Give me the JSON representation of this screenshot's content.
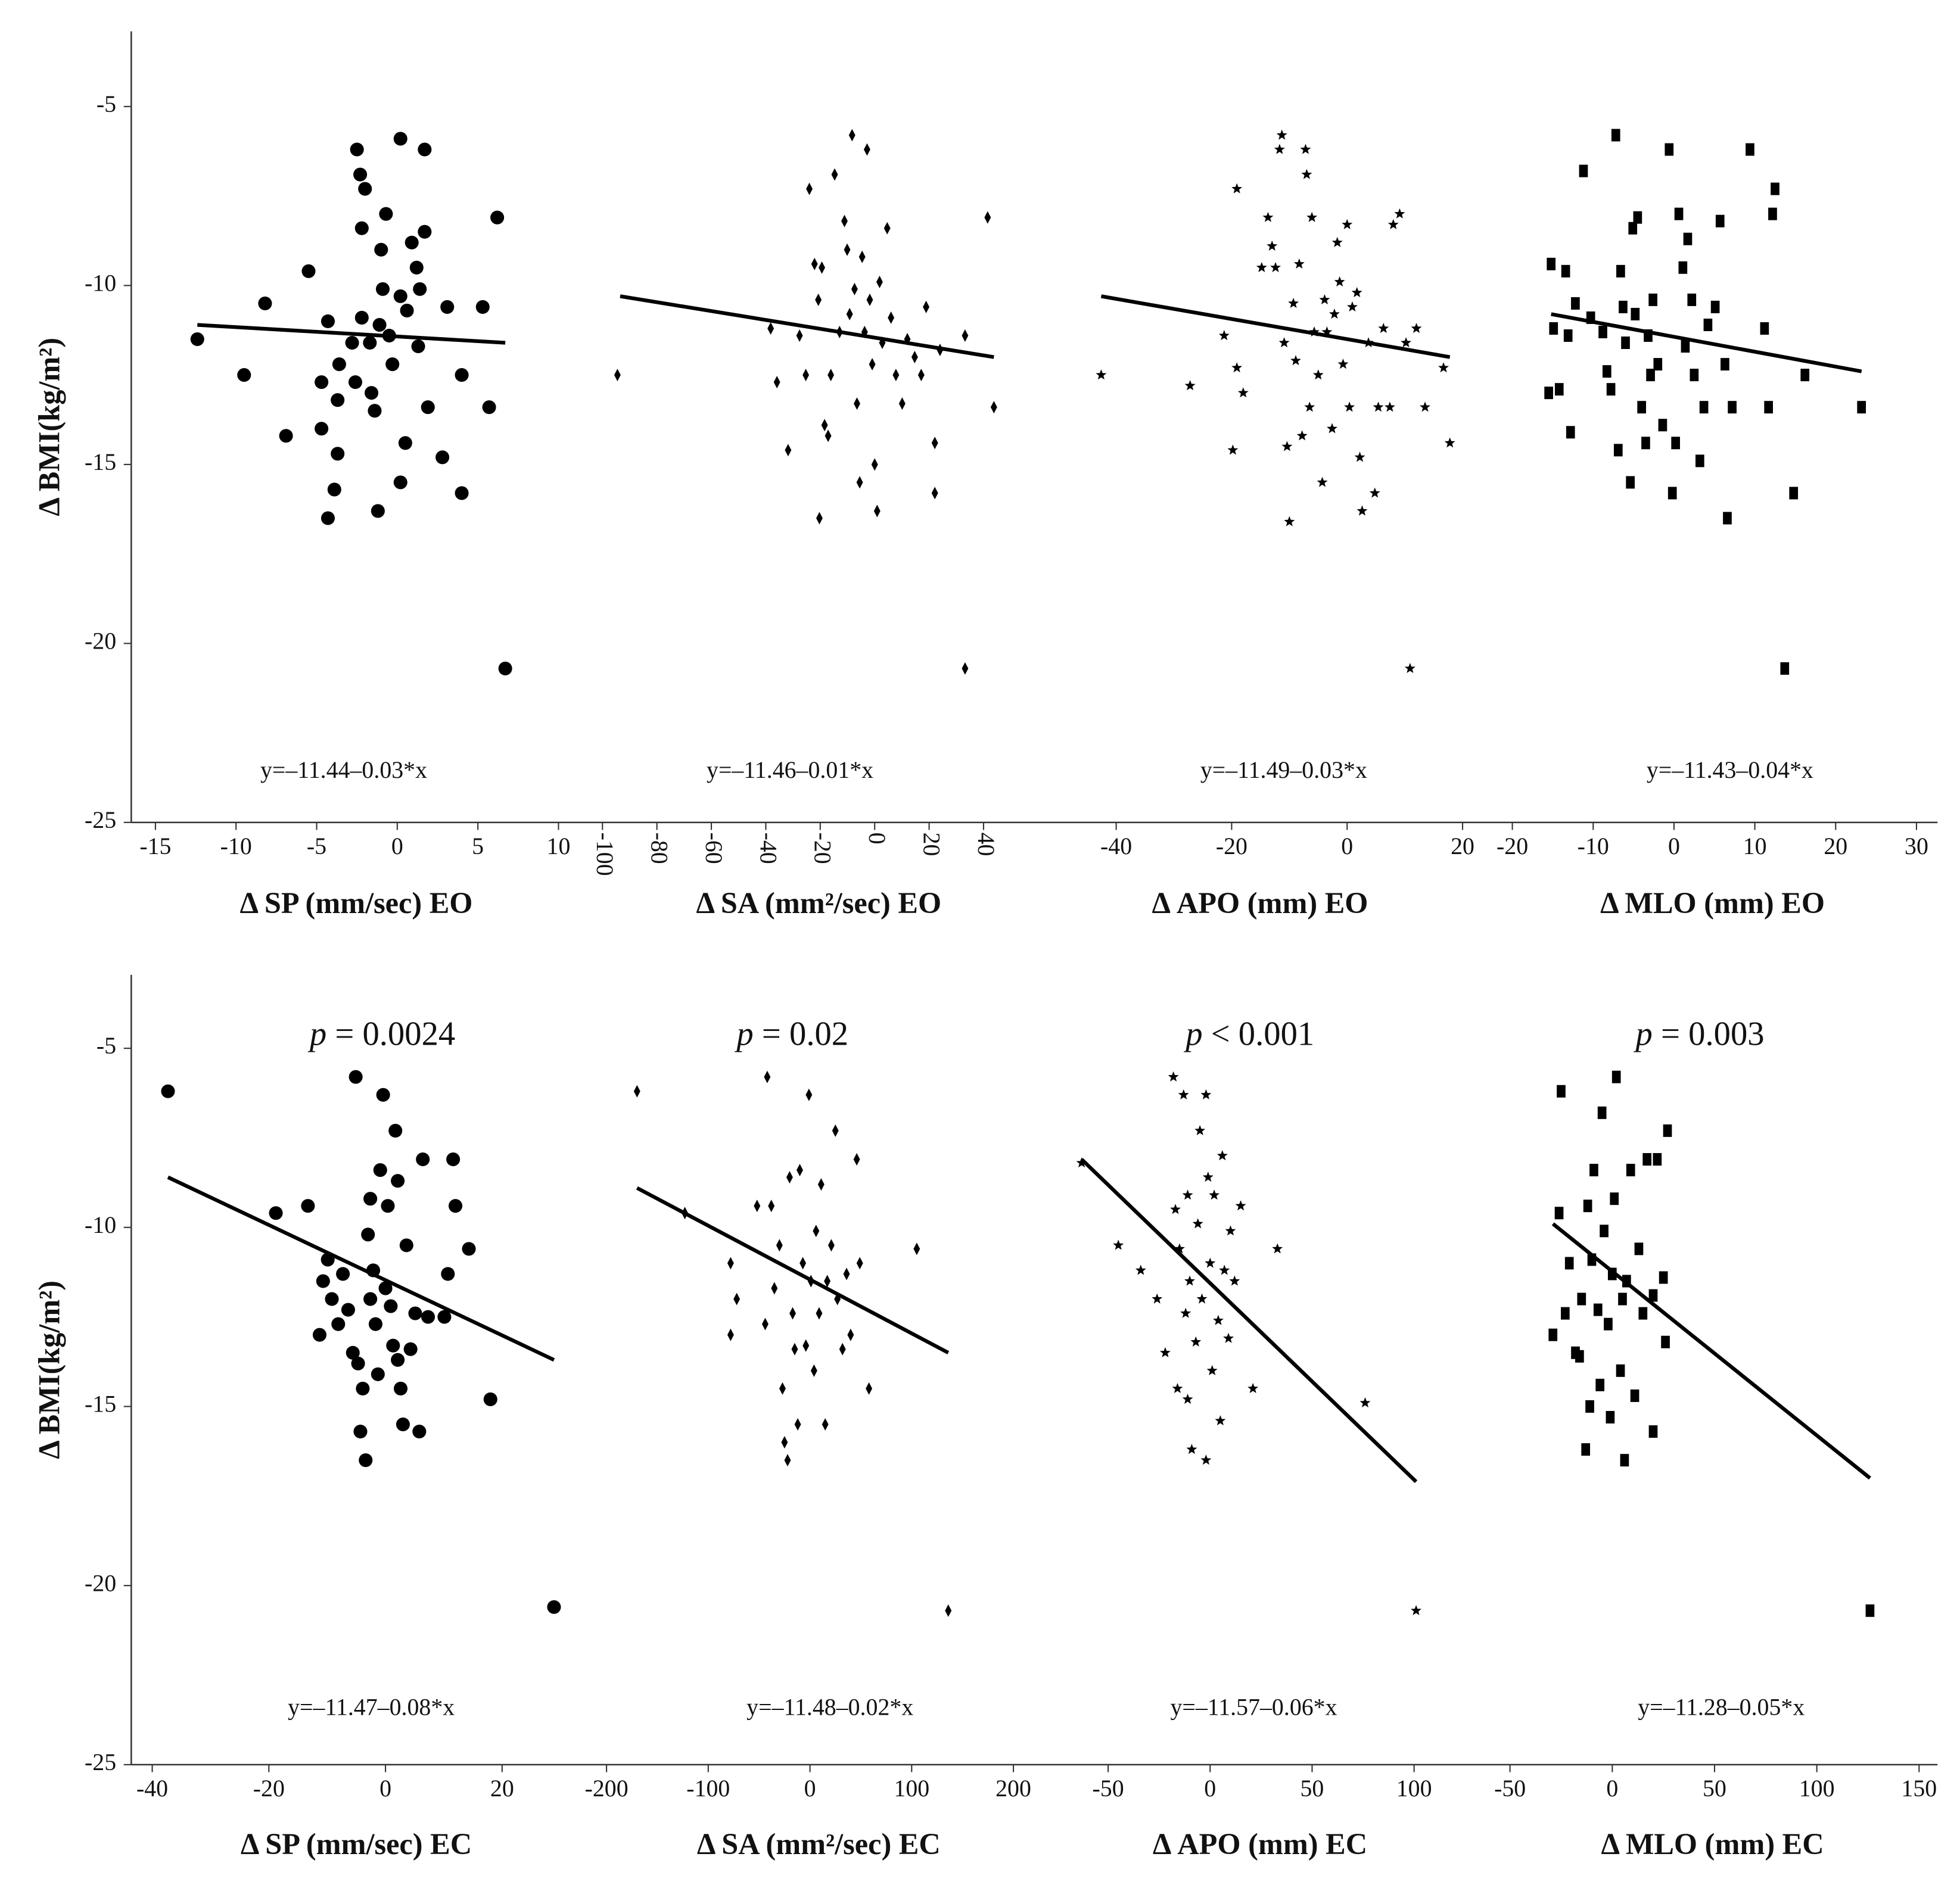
{
  "chart_data": [
    {
      "type": "scatter",
      "marker": "circle",
      "ylabel": "Δ BMI(kg/m²)",
      "ylim": [
        -25,
        -2.9
      ],
      "yticks": [
        -25,
        -20,
        -15,
        -10,
        -5
      ],
      "xlabel": "Δ SP (mm/sec) EO",
      "equation": "y=–11.44–0.03*x",
      "xlim": [
        -16.5,
        11.8
      ],
      "xticks": [
        -15,
        -10,
        -5,
        0,
        5,
        10
      ],
      "x": [
        -12.4,
        -9.5,
        -8.2,
        -6.9,
        -5.5,
        -4.7,
        -4.3,
        -3.9,
        -3.7,
        -4.7,
        -4.3,
        -3.6,
        -2.6,
        -2.5,
        -2.3,
        -2.0,
        -2.2,
        -1.7,
        -1.6,
        -1.2,
        -1.1,
        -1.0,
        -0.9,
        -0.7,
        -0.5,
        -0.3,
        0.2,
        0.2,
        0.2,
        0.5,
        0.6,
        0.9,
        1.2,
        1.4,
        1.7,
        1.7,
        1.9,
        2.8,
        3.1,
        4.0,
        4.0,
        5.7,
        6.2,
        5.3,
        6.7,
        -2.8,
        -1.4,
        -3.7,
        1.3,
        -2.2
      ],
      "values": [
        -11.5,
        -12.5,
        -10.5,
        -14.2,
        -9.6,
        -14.0,
        -16.5,
        -15.7,
        -14.7,
        -12.7,
        -11.0,
        -12.2,
        -12.7,
        -6.2,
        -6.9,
        -7.3,
        -8.4,
        -11.6,
        -13.0,
        -16.3,
        -11.1,
        -9.0,
        -10.1,
        -8.0,
        -11.4,
        -12.2,
        -5.9,
        -10.3,
        -15.5,
        -14.4,
        -10.7,
        -8.8,
        -9.5,
        -10.1,
        -6.2,
        -8.5,
        -13.4,
        -14.8,
        -10.6,
        -15.8,
        -12.5,
        -13.4,
        -8.1,
        -10.6,
        -20.7,
        -11.6,
        -13.5,
        -13.2,
        -11.7,
        -10.9
      ],
      "trend": {
        "x": [
          -12.4,
          6.7
        ],
        "y": [
          -11.1,
          -11.6
        ]
      }
    },
    {
      "type": "scatter",
      "marker": "diamond",
      "xlabel": "Δ SA (mm²/sec) EO",
      "equation": "y=–11.46–0.01*x",
      "xlim": [
        -105.5,
        69
      ],
      "xticks": [
        -100,
        -80,
        -60,
        -40,
        -20,
        0,
        20,
        40
      ],
      "xtick_rotation": 90,
      "x": [
        -94.5,
        -38.2,
        -35.9,
        -31.8,
        -27.6,
        -25.3,
        -24.0,
        -22.1,
        -20.7,
        -20.3,
        -19.4,
        -18.4,
        -17.1,
        -16.1,
        -14.7,
        -12.9,
        -11.1,
        -10.1,
        -9.2,
        -8.3,
        -7.4,
        -6.5,
        -5.5,
        -4.6,
        -3.7,
        -2.8,
        -1.8,
        -0.9,
        0,
        0.9,
        1.8,
        2.8,
        4.6,
        6.0,
        7.8,
        10.1,
        12.0,
        14.7,
        17.1,
        18.9,
        22.1,
        22.1,
        24.0,
        33.2,
        33.2,
        41.5,
        43.8
      ],
      "values": [
        -12.5,
        -11.2,
        -12.7,
        -14.6,
        -11.4,
        -12.5,
        -7.3,
        -9.4,
        -10.4,
        -16.5,
        -9.5,
        -13.9,
        -14.2,
        -12.5,
        -6.9,
        -11.3,
        -8.2,
        -9.0,
        -10.8,
        -5.8,
        -10.1,
        -13.3,
        -15.5,
        -9.2,
        -11.3,
        -6.2,
        -10.4,
        -12.2,
        -15.0,
        -16.3,
        -9.9,
        -11.6,
        -8.4,
        -10.9,
        -12.5,
        -13.3,
        -11.5,
        -12.0,
        -12.5,
        -10.6,
        -14.4,
        -15.8,
        -11.8,
        -20.7,
        -11.4,
        -8.1,
        -13.4
      ],
      "trend": {
        "x": [
          -93.5,
          43.8
        ],
        "y": [
          -10.3,
          -12.0
        ]
      }
    },
    {
      "type": "scatter",
      "marker": "star",
      "xlabel": "Δ APO (mm) EO",
      "equation": "y=–11.49–0.03*x",
      "xlim": [
        -49.3,
        25.4
      ],
      "xticks": [
        -40,
        -20,
        0,
        20
      ],
      "x": [
        -42.6,
        -27.2,
        -21.3,
        -19.8,
        -19.1,
        -19.1,
        -18.0,
        -14.8,
        -13.7,
        -13.0,
        -12.4,
        -11.7,
        -11.3,
        -10.9,
        -10.4,
        -10.0,
        -9.3,
        -8.9,
        -8.3,
        -7.8,
        -7.2,
        -7.0,
        -6.5,
        -6.1,
        -5.7,
        -5.0,
        -4.3,
        -3.9,
        -3.5,
        -2.6,
        -2.2,
        -1.7,
        -1.3,
        -0.7,
        0,
        0.4,
        0.9,
        1.7,
        2.2,
        2.6,
        3.7,
        4.8,
        5.4,
        6.3,
        7.4,
        8.0,
        9.1,
        10.2,
        10.9,
        12.0,
        13.5,
        16.7,
        17.8
      ],
      "values": [
        -12.5,
        -12.8,
        -11.4,
        -14.6,
        -12.3,
        -7.3,
        -13.0,
        -9.5,
        -8.1,
        -8.9,
        -9.5,
        -6.2,
        -5.8,
        -11.6,
        -14.5,
        -16.6,
        -10.5,
        -12.1,
        -9.4,
        -14.2,
        -6.2,
        -6.9,
        -13.4,
        -8.1,
        -11.3,
        -12.5,
        -15.5,
        -10.4,
        -11.3,
        -14.0,
        -10.8,
        -8.8,
        -9.9,
        -12.2,
        -8.3,
        -13.4,
        -10.6,
        -10.2,
        -14.8,
        -16.3,
        -11.6,
        -15.8,
        -13.4,
        -11.2,
        -13.4,
        -8.3,
        -8.0,
        -11.6,
        -20.7,
        -11.2,
        -13.4,
        -12.3,
        -14.4
      ],
      "trend": {
        "x": [
          -42.6,
          17.8
        ],
        "y": [
          -10.3,
          -12.0
        ]
      }
    },
    {
      "type": "scatter",
      "marker": "square",
      "xlabel": "Δ MLO (mm) EO",
      "equation": "y=–11.43–0.04*x",
      "xlim": [
        -22.3,
        32.6
      ],
      "xticks": [
        -20,
        -10,
        0,
        10,
        20,
        30
      ],
      "x": [
        -15.5,
        -15.2,
        -14.9,
        -14.2,
        -13.4,
        -13.1,
        -12.8,
        -12.2,
        -11.2,
        -10.3,
        -8.8,
        -8.3,
        -7.8,
        -7.2,
        -6.9,
        -6.6,
        -6.3,
        -6.0,
        -5.4,
        -5.1,
        -4.8,
        -4.5,
        -4.0,
        -3.5,
        -3.2,
        -2.9,
        -2.6,
        -2.0,
        -1.4,
        -0.6,
        -0.2,
        0.2,
        0.6,
        1.1,
        1.4,
        1.7,
        2.2,
        2.5,
        3.2,
        3.7,
        4.2,
        5.1,
        5.7,
        6.3,
        6.6,
        7.2,
        9.4,
        11.2,
        11.7,
        12.2,
        12.5,
        13.7,
        14.8,
        16.2,
        23.2
      ],
      "values": [
        -13.0,
        -9.4,
        -11.2,
        -12.9,
        -9.6,
        -11.4,
        -14.1,
        -10.5,
        -6.8,
        -10.9,
        -11.3,
        -12.4,
        -12.9,
        -5.8,
        -14.6,
        -9.6,
        -10.6,
        -11.6,
        -15.5,
        -8.4,
        -10.8,
        -8.1,
        -13.4,
        -14.4,
        -11.4,
        -12.5,
        -10.4,
        -12.2,
        -13.9,
        -6.2,
        -15.8,
        -14.4,
        -8.0,
        -9.5,
        -11.7,
        -8.7,
        -10.4,
        -12.5,
        -14.9,
        -13.4,
        -11.1,
        -10.6,
        -8.2,
        -12.2,
        -16.5,
        -13.4,
        -6.2,
        -11.2,
        -13.4,
        -8.0,
        -7.3,
        -20.7,
        -15.8,
        -12.5,
        -13.4
      ],
      "trend": {
        "x": [
          -15.2,
          23.2
        ],
        "y": [
          -10.8,
          -12.4
        ]
      }
    },
    {
      "type": "scatter",
      "marker": "circle",
      "ylabel": "Δ BMI(kg/m²)",
      "ylim": [
        -25,
        -2.95
      ],
      "yticks": [
        -25,
        -20,
        -15,
        -10,
        -5
      ],
      "xlabel": "Δ SP (mm/sec) EC",
      "equation": "y=–11.47–0.08*x",
      "p_symbol": "p",
      "p_value": " = 0.0024",
      "xlim": [
        -43.6,
        32.5
      ],
      "xticks": [
        -40,
        -20,
        0,
        20
      ],
      "x": [
        -37.3,
        -18.8,
        -13.3,
        -11.3,
        -10.7,
        -9.9,
        -9.2,
        -8.1,
        -7.3,
        -6.4,
        -5.6,
        -5.1,
        -4.7,
        -4.3,
        -3.9,
        -3.4,
        -3.0,
        -2.6,
        -2.1,
        -1.7,
        -1.3,
        -0.9,
        -0.4,
        0,
        0.4,
        0.9,
        1.3,
        1.7,
        2.1,
        2.6,
        3.0,
        3.6,
        4.3,
        5.1,
        5.8,
        6.4,
        7.3,
        10.1,
        10.7,
        11.6,
        12.0,
        14.3,
        18.0,
        28.9,
        -2.6,
        2.1
      ],
      "values": [
        -6.2,
        -9.6,
        -9.4,
        -13.0,
        -11.5,
        -10.9,
        -12.0,
        -12.7,
        -11.3,
        -12.3,
        -13.5,
        -5.8,
        -13.8,
        -15.7,
        -14.5,
        -16.5,
        -10.2,
        -12.0,
        -11.2,
        -12.7,
        -14.1,
        -8.4,
        -6.3,
        -11.7,
        -9.4,
        -12.2,
        -13.3,
        -7.3,
        -8.7,
        -14.5,
        -15.5,
        -10.5,
        -13.4,
        -12.4,
        -15.7,
        -8.1,
        -12.5,
        -12.5,
        -11.3,
        -8.1,
        -9.4,
        -10.6,
        -14.8,
        -20.6,
        -9.2,
        -13.7
      ],
      "trend": {
        "x": [
          -37.3,
          28.9
        ],
        "y": [
          -8.6,
          -13.7
        ]
      }
    },
    {
      "type": "scatter",
      "marker": "diamond",
      "xlabel": "Δ SA (mm²/sec) EC",
      "equation": "y=–11.48–0.02*x",
      "p_symbol": "p",
      "p_value": " = 0.02",
      "xlim": [
        -231,
        236
      ],
      "xticks": [
        -200,
        -100,
        0,
        100,
        200
      ],
      "x": [
        -170,
        -123,
        -78,
        -78,
        -72,
        -52,
        -44,
        -42,
        -38,
        -35,
        -30,
        -27,
        -25,
        -22,
        -20,
        -17,
        -15,
        -12,
        -10,
        -7,
        -4,
        -1,
        1,
        4,
        6,
        9,
        11,
        15,
        17,
        21,
        25,
        27,
        32,
        36,
        40,
        46,
        49,
        58,
        105,
        136
      ],
      "values": [
        -6.2,
        -9.6,
        -11.0,
        -13.0,
        -12.0,
        -9.4,
        -12.7,
        -5.8,
        -9.4,
        -11.7,
        -10.5,
        -14.5,
        -16.0,
        -16.5,
        -8.6,
        -12.4,
        -13.4,
        -15.5,
        -8.4,
        -11.0,
        -13.3,
        -6.3,
        -11.5,
        -14.0,
        -10.1,
        -12.4,
        -8.8,
        -15.5,
        -11.5,
        -10.5,
        -7.3,
        -12.0,
        -13.4,
        -11.3,
        -13.0,
        -8.1,
        -11.0,
        -14.5,
        -10.6,
        -20.7
      ],
      "trend": {
        "x": [
          -170,
          136
        ],
        "y": [
          -8.9,
          -13.5
        ]
      }
    },
    {
      "type": "scatter",
      "marker": "star",
      "xlabel": "Δ APO (mm) EC",
      "equation": "y=–11.57–0.06*x",
      "p_symbol": "p",
      "p_value": " < 0.001",
      "xlim": [
        -78.5,
        136
      ],
      "xticks": [
        -50,
        0,
        50,
        100
      ],
      "x": [
        -63,
        -45,
        -34,
        -26,
        -22,
        -18,
        -17,
        -16,
        -15,
        -13,
        -12,
        -11,
        -10,
        -9,
        -7,
        -6,
        -5,
        -4,
        -2,
        -1,
        0,
        1,
        2,
        4,
        5,
        6,
        7,
        9,
        10,
        12,
        15,
        21,
        33,
        76,
        101,
        -2,
        -11
      ],
      "values": [
        -8.2,
        -10.5,
        -11.2,
        -12.0,
        -13.5,
        -5.8,
        -9.5,
        -14.5,
        -10.6,
        -6.3,
        -12.4,
        -9.1,
        -11.5,
        -16.2,
        -13.2,
        -9.9,
        -7.3,
        -12.0,
        -16.5,
        -8.6,
        -11.0,
        -14.0,
        -9.1,
        -12.6,
        -15.4,
        -8.0,
        -11.2,
        -13.1,
        -10.1,
        -11.5,
        -9.4,
        -14.5,
        -10.6,
        -14.9,
        -20.7,
        -6.3,
        -14.8
      ],
      "trend": {
        "x": [
          -63,
          101
        ],
        "y": [
          -8.1,
          -17.1
        ]
      }
    },
    {
      "type": "scatter",
      "marker": "square",
      "xlabel": "Δ MLO (mm) EC",
      "equation": "y=–11.28–0.05*x",
      "p_symbol": "p",
      "p_value": " = 0.003",
      "xlim": [
        -61,
        159
      ],
      "xticks": [
        -50,
        0,
        50,
        100,
        150
      ],
      "x": [
        -29,
        -26,
        -25,
        -23,
        -21,
        -18,
        -15,
        -13,
        -12,
        -11,
        -10,
        -9,
        -7,
        -6,
        -5,
        -4,
        -2,
        -1,
        0,
        1,
        2,
        4,
        5,
        6,
        7,
        9,
        11,
        13,
        15,
        17,
        20,
        22,
        25,
        27,
        26,
        20,
        126,
        -16
      ],
      "values": [
        -13.0,
        -9.6,
        -6.2,
        -12.4,
        -11.0,
        -13.5,
        -12.0,
        -16.2,
        -9.4,
        -15.0,
        -10.9,
        -8.4,
        -12.3,
        -14.4,
        -6.8,
        -10.1,
        -12.7,
        -15.3,
        -11.3,
        -9.2,
        -5.8,
        -14.0,
        -12.0,
        -16.5,
        -11.5,
        -8.4,
        -14.7,
        -10.6,
        -12.4,
        -8.1,
        -11.9,
        -8.1,
        -11.4,
        -7.3,
        -13.2,
        -15.7,
        -20.7,
        -13.6
      ],
      "trend": {
        "x": [
          -29,
          126
        ],
        "y": [
          -9.9,
          -17.0
        ]
      }
    }
  ]
}
